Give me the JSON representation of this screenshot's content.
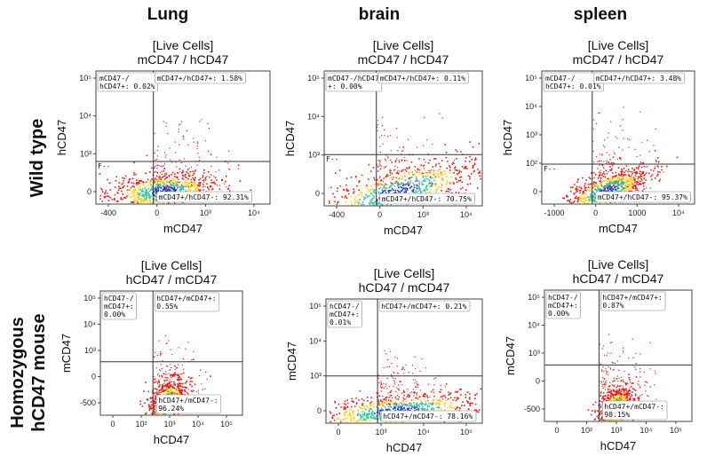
{
  "column_titles": [
    "Lung",
    "brain",
    "spleen"
  ],
  "row_titles": {
    "wild_type": "Wild type",
    "homozygous_line1": "Homozygous",
    "homozygous_line2": "hCD47 mouse"
  },
  "colors": {
    "density_high": "#1f3fbf",
    "density_mid": "#2ec4a0",
    "density_midhigh": "#ffd21f",
    "density_low": "#e8201a",
    "axis": "#444444",
    "gate_line": "#333333"
  },
  "chart_data": [
    {
      "type": "scatter",
      "row": 0,
      "col": 0,
      "title_line1": "[Live Cells]",
      "title_line2": "mCD47 / hCD47",
      "xlabel": "mCD47",
      "ylabel": "hCD47",
      "x_ticks": [
        "-400",
        "0",
        "10³",
        "10⁴"
      ],
      "y_ticks": [
        "10⁵",
        "10⁴",
        "10³",
        "0"
      ],
      "extra_label": "F--",
      "cloud_x_center": 0.38,
      "cloud_spread_x": 0.16,
      "cloud_spread_y": 0.07,
      "cloud_tilt": 0.1,
      "gate_x": 0.33,
      "gate_y": 0.32,
      "quadrants": {
        "upper_left": "mCD47-/\nhCD47+: 0.02%",
        "upper_right": "mCD47+/hCD47+: 1.58%",
        "lower_right": "mCD47+/hCD47-: 92.31%"
      }
    },
    {
      "type": "scatter",
      "row": 0,
      "col": 1,
      "title_line1": "[Live Cells]",
      "title_line2": "mCD47 / hCD47",
      "xlabel": "mCD47",
      "ylabel": "hCD47",
      "x_ticks": [
        "-400",
        "0",
        "10³",
        "10⁴"
      ],
      "y_ticks": [
        "10⁵",
        "10⁴",
        "10³",
        "0"
      ],
      "extra_label": "F--",
      "cloud_x_center": 0.45,
      "cloud_spread_x": 0.28,
      "cloud_spread_y": 0.1,
      "cloud_tilt": 0.3,
      "gate_x": 0.33,
      "gate_y": 0.38,
      "quadrants": {
        "upper_left": "mCD47-/hCD47\n+: 0.00%",
        "upper_right": "mCD47+/hCD47+: 0.11%",
        "lower_right": "mCD47+/hCD47-: 70.75%"
      }
    },
    {
      "type": "scatter",
      "row": 0,
      "col": 2,
      "title_line1": "[Live Cells]",
      "title_line2": "mCD47 / hCD47",
      "xlabel": "mCD47",
      "ylabel": "hCD47",
      "x_ticks": [
        "-1000",
        "0",
        "1000",
        "10⁴"
      ],
      "y_ticks": [
        "10⁵",
        "10⁴",
        "10³",
        "10²",
        "0"
      ],
      "extra_label": "F--",
      "cloud_x_center": 0.42,
      "cloud_spread_x": 0.14,
      "cloud_spread_y": 0.07,
      "cloud_tilt": 0.35,
      "gate_x": 0.33,
      "gate_y": 0.3,
      "quadrants": {
        "upper_left": "mCD47-/\nhCD47+: 0.01%",
        "upper_right": "mCD47+/hCD47+: 3.48%",
        "lower_right": "mCD47+/hCD47-: 95.37%"
      }
    },
    {
      "type": "scatter",
      "row": 1,
      "col": 0,
      "title_line1": "[Live Cells]",
      "title_line2": "hCD47 / mCD47",
      "xlabel": "hCD47",
      "ylabel": "mCD47",
      "x_ticks": [
        "0",
        "10²",
        "10³",
        "10⁴",
        "10⁵"
      ],
      "y_ticks": [
        "10⁵",
        "10⁴",
        "10³",
        "0",
        "-500"
      ],
      "extra_label": "",
      "cloud_x_center": 0.47,
      "cloud_spread_x": 0.07,
      "cloud_spread_y": 0.09,
      "cloud_tilt": 0.4,
      "gate_x": 0.37,
      "gate_y": 0.43,
      "quadrants": {
        "upper_left": "hCD47-/\nmCD47+:\n0.00%",
        "upper_right": "hCD47+/mCD47+:\n0.55%",
        "lower_right": "hCD47+/mCD47-:\n96.24%"
      }
    },
    {
      "type": "scatter",
      "row": 1,
      "col": 1,
      "title_line1": "[Live Cells]",
      "title_line2": "hCD47 / mCD47",
      "xlabel": "hCD47",
      "ylabel": "mCD47",
      "x_ticks": [
        "0",
        "10³",
        "10⁴",
        "10⁵"
      ],
      "y_ticks": [
        "10⁵",
        "10⁴",
        "10³",
        "0"
      ],
      "extra_label": "",
      "cloud_x_center": 0.45,
      "cloud_spread_x": 0.3,
      "cloud_spread_y": 0.07,
      "cloud_tilt": 0.1,
      "gate_x": 0.33,
      "gate_y": 0.38,
      "quadrants": {
        "upper_left": "hCD47-/\nmCD47+:\n0.01%",
        "upper_right": "hCD47+/mCD47+: 0.21%",
        "lower_right": "hCD47+/mCD47-: 78.16%"
      }
    },
    {
      "type": "scatter",
      "row": 1,
      "col": 2,
      "title_line1": "[Live Cells]",
      "title_line2": "hCD47 / mCD47",
      "xlabel": "hCD47",
      "ylabel": "mCD47",
      "x_ticks": [
        "0",
        "10²",
        "10³",
        "10⁴",
        "10⁵"
      ],
      "y_ticks": [
        "10⁵",
        "10⁴",
        "10³",
        "0",
        "-500"
      ],
      "extra_label": "",
      "cloud_x_center": 0.48,
      "cloud_spread_x": 0.06,
      "cloud_spread_y": 0.08,
      "cloud_tilt": 0.4,
      "gate_x": 0.37,
      "gate_y": 0.43,
      "quadrants": {
        "upper_left": "hCD47-/\nmCD47+:\n0.00%",
        "upper_right": "hCD47+/mCD47+:\n0.87%",
        "lower_right": "hCD47+/mCD47-:\n98.15%"
      }
    }
  ]
}
